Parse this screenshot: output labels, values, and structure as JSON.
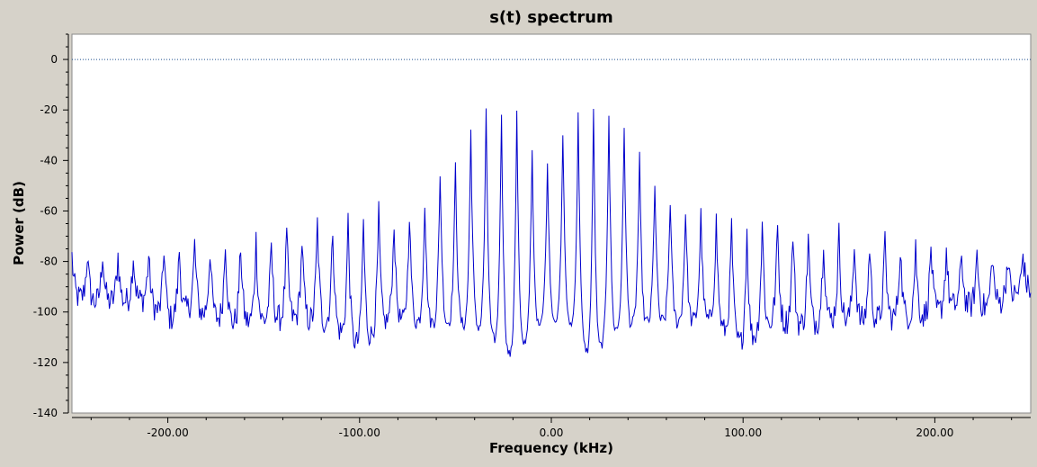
{
  "chart_data": {
    "type": "line",
    "title": "s(t) spectrum",
    "xlabel": "Frequency (kHz)",
    "ylabel": "Power (dB)",
    "xlim": [
      -250,
      250
    ],
    "ylim": [
      -140,
      10
    ],
    "x_ticks": [
      -200,
      -100,
      0,
      100,
      200
    ],
    "x_tick_labels": [
      "-200.00",
      "-100.00",
      "0.00",
      "100.00",
      "200.00"
    ],
    "y_ticks": [
      0,
      -20,
      -40,
      -60,
      -80,
      -100,
      -120,
      -140
    ],
    "y_tick_labels": [
      "0",
      "-20",
      "-40",
      "-60",
      "-80",
      "-100",
      "-120",
      "-140"
    ],
    "reference_line": {
      "y": 0,
      "style": "dotted",
      "color": "#1f4f8f"
    },
    "grid": false,
    "legend": "none",
    "colors": {
      "series": "#0000cc",
      "plot_bg": "#ffffff",
      "window_bg": "#d6d2c9"
    },
    "series": [
      {
        "line_spacing_khz": 8,
        "peaks": [
          {
            "x": -248,
            "y": -78
          },
          {
            "x": -240,
            "y": -77
          },
          {
            "x": -232,
            "y": -76
          },
          {
            "x": -224,
            "y": -78
          },
          {
            "x": -216,
            "y": -77
          },
          {
            "x": -208,
            "y": -78
          },
          {
            "x": -200,
            "y": -73
          },
          {
            "x": -192,
            "y": -76
          },
          {
            "x": -184,
            "y": -72
          },
          {
            "x": -176,
            "y": -76
          },
          {
            "x": -168,
            "y": -69
          },
          {
            "x": -160,
            "y": -75
          },
          {
            "x": -152,
            "y": -70
          },
          {
            "x": -144,
            "y": -75
          },
          {
            "x": -136,
            "y": -67
          },
          {
            "x": -128,
            "y": -73
          },
          {
            "x": -120,
            "y": -62
          },
          {
            "x": -112,
            "y": -68
          },
          {
            "x": -104,
            "y": -62
          },
          {
            "x": -96,
            "y": -64
          },
          {
            "x": -88,
            "y": -59
          },
          {
            "x": -80,
            "y": -66
          },
          {
            "x": -72,
            "y": -59
          },
          {
            "x": -64,
            "y": -55
          },
          {
            "x": -56,
            "y": -41
          },
          {
            "x": -48,
            "y": -43
          },
          {
            "x": -40,
            "y": -23
          },
          {
            "x": -32,
            "y": -21
          },
          {
            "x": -24,
            "y": -21
          },
          {
            "x": -16,
            "y": -21
          },
          {
            "x": -8,
            "y": -42
          },
          {
            "x": 0,
            "y": -41
          },
          {
            "x": 8,
            "y": -25
          },
          {
            "x": 16,
            "y": -21
          },
          {
            "x": 24,
            "y": -21
          },
          {
            "x": 32,
            "y": -21
          },
          {
            "x": 40,
            "y": -28
          },
          {
            "x": 48,
            "y": -43
          },
          {
            "x": 56,
            "y": -50
          },
          {
            "x": 64,
            "y": -57
          },
          {
            "x": 72,
            "y": -60
          },
          {
            "x": 80,
            "y": -62
          },
          {
            "x": 88,
            "y": -64
          },
          {
            "x": 96,
            "y": -66
          },
          {
            "x": 104,
            "y": -68
          },
          {
            "x": 112,
            "y": -63
          },
          {
            "x": 120,
            "y": -67
          },
          {
            "x": 128,
            "y": -69
          },
          {
            "x": 136,
            "y": -70
          },
          {
            "x": 144,
            "y": -70
          },
          {
            "x": 152,
            "y": -69
          },
          {
            "x": 160,
            "y": -72
          },
          {
            "x": 168,
            "y": -74
          },
          {
            "x": 176,
            "y": -71
          },
          {
            "x": 184,
            "y": -74
          },
          {
            "x": 192,
            "y": -74
          },
          {
            "x": 200,
            "y": -73
          },
          {
            "x": 208,
            "y": -76
          },
          {
            "x": 216,
            "y": -77
          },
          {
            "x": 224,
            "y": -76
          },
          {
            "x": 232,
            "y": -77
          },
          {
            "x": 240,
            "y": -78
          },
          {
            "x": 248,
            "y": -76
          }
        ],
        "nulls": [
          {
            "x": -248,
            "y": -94
          },
          {
            "x": -236,
            "y": -96
          },
          {
            "x": -212,
            "y": -95
          },
          {
            "x": -200,
            "y": -103
          },
          {
            "x": -188,
            "y": -98
          },
          {
            "x": -180,
            "y": -101
          },
          {
            "x": -164,
            "y": -104
          },
          {
            "x": -148,
            "y": -103
          },
          {
            "x": -136,
            "y": -102
          },
          {
            "x": -116,
            "y": -104
          },
          {
            "x": -100,
            "y": -113
          },
          {
            "x": -84,
            "y": -102
          },
          {
            "x": -68,
            "y": -104
          },
          {
            "x": -52,
            "y": -104
          },
          {
            "x": -36,
            "y": -106
          },
          {
            "x": -20,
            "y": -118
          },
          {
            "x": -4,
            "y": -102
          },
          {
            "x": 12,
            "y": -105
          },
          {
            "x": 20,
            "y": -118
          },
          {
            "x": 36,
            "y": -105
          },
          {
            "x": 52,
            "y": -104
          },
          {
            "x": 84,
            "y": -103
          },
          {
            "x": 100,
            "y": -113
          },
          {
            "x": 116,
            "y": -103
          },
          {
            "x": 132,
            "y": -105
          },
          {
            "x": 148,
            "y": -102
          },
          {
            "x": 164,
            "y": -103
          },
          {
            "x": 180,
            "y": -102
          },
          {
            "x": 196,
            "y": -101
          },
          {
            "x": 212,
            "y": -97
          },
          {
            "x": 228,
            "y": -98
          },
          {
            "x": 248,
            "y": -91
          }
        ]
      }
    ]
  }
}
